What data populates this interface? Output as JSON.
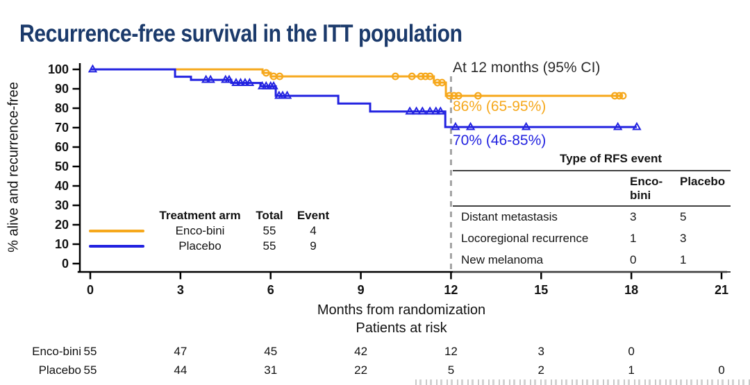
{
  "title": "Recurrence-free survival in the ITT population",
  "colors": {
    "title": "#1b3a6b",
    "axis": "#000000",
    "dashed_line": "#a3a3a3",
    "encobini": "#F6A81C",
    "placebo": "#2222E0"
  },
  "rfs_table": {
    "title": "Type of RFS event",
    "columns": [
      "Enco-bini",
      "Placebo"
    ],
    "rows": [
      {
        "label": "Distant metastasis",
        "encobini": 3,
        "placebo": 5
      },
      {
        "label": "Locoregional recurrence",
        "encobini": 1,
        "placebo": 3
      },
      {
        "label": "New melanoma",
        "encobini": 0,
        "placebo": 1
      }
    ]
  },
  "chart_data": {
    "type": "line",
    "subtype": "kaplan_meier_step",
    "title": "Recurrence-free survival in the ITT population",
    "xlabel": "Months from randomization",
    "ylabel": "% alive and recurrence-free",
    "risk_header": "Patients at risk",
    "xlim": [
      0,
      21
    ],
    "ylim": [
      0,
      100
    ],
    "xticks": [
      0,
      3,
      6,
      9,
      12,
      15,
      18,
      21
    ],
    "yticks": [
      0,
      10,
      20,
      30,
      40,
      50,
      60,
      70,
      80,
      90,
      100
    ],
    "grid": false,
    "reference_line_month": 12,
    "annotations": {
      "heading": "At 12 months (95% CI)",
      "encobini": "86% (65-95%)",
      "placebo": "70% (46-85%)"
    },
    "legend": {
      "header_arm": "Treatment arm",
      "header_total": "Total",
      "header_event": "Event",
      "rows": [
        {
          "arm": "Enco-bini",
          "total": 55,
          "event": 4
        },
        {
          "arm": "Placebo",
          "total": 55,
          "event": 9
        }
      ]
    },
    "series": [
      {
        "name": "Enco-bini",
        "color": "#F6A81C",
        "marker": "circle",
        "start_pct": 100,
        "drops": [
          [
            5.73,
            98.2
          ],
          [
            6.0,
            96.4
          ],
          [
            11.43,
            93.2
          ],
          [
            11.83,
            86.4
          ]
        ],
        "end_month": 17.72,
        "censor_marks": [
          [
            5.85,
            98.2
          ],
          [
            6.1,
            96.4
          ],
          [
            6.3,
            96.4
          ],
          [
            10.15,
            96.4
          ],
          [
            10.7,
            96.4
          ],
          [
            11.0,
            96.4
          ],
          [
            11.15,
            96.4
          ],
          [
            11.3,
            96.4
          ],
          [
            11.55,
            93.2
          ],
          [
            11.7,
            93.2
          ],
          [
            11.95,
            86.4
          ],
          [
            12.1,
            86.4
          ],
          [
            12.25,
            86.4
          ],
          [
            12.9,
            86.4
          ],
          [
            17.45,
            86.4
          ],
          [
            17.6,
            86.4
          ],
          [
            17.72,
            86.4
          ]
        ]
      },
      {
        "name": "Placebo",
        "color": "#2222E0",
        "marker": "triangle",
        "start_pct": 100,
        "drops": [
          [
            2.82,
            96.2
          ],
          [
            3.35,
            94.6
          ],
          [
            4.69,
            93.0
          ],
          [
            5.66,
            91.3
          ],
          [
            6.17,
            86.4
          ],
          [
            8.25,
            82.4
          ],
          [
            9.31,
            78.3
          ],
          [
            11.81,
            70.3
          ]
        ],
        "end_month": 18.18,
        "censor_marks": [
          [
            0.08,
            100
          ],
          [
            3.85,
            94.6
          ],
          [
            4.0,
            94.6
          ],
          [
            4.5,
            94.6
          ],
          [
            4.62,
            94.6
          ],
          [
            4.85,
            93.0
          ],
          [
            5.0,
            93.0
          ],
          [
            5.15,
            93.0
          ],
          [
            5.3,
            93.0
          ],
          [
            5.72,
            91.3
          ],
          [
            5.85,
            91.3
          ],
          [
            6.0,
            91.3
          ],
          [
            6.1,
            91.3
          ],
          [
            6.28,
            86.4
          ],
          [
            6.4,
            86.4
          ],
          [
            6.55,
            86.4
          ],
          [
            10.63,
            78.3
          ],
          [
            10.85,
            78.3
          ],
          [
            11.05,
            78.3
          ],
          [
            11.3,
            78.3
          ],
          [
            11.5,
            78.3
          ],
          [
            11.65,
            78.3
          ],
          [
            12.15,
            70.3
          ],
          [
            12.65,
            70.3
          ],
          [
            14.5,
            70.3
          ],
          [
            17.55,
            70.3
          ],
          [
            18.18,
            70.3
          ]
        ]
      }
    ],
    "at_risk": {
      "months": [
        0,
        3,
        6,
        9,
        12,
        15,
        18,
        21
      ],
      "rows": [
        {
          "label": "Enco-bini",
          "counts": [
            55,
            47,
            45,
            42,
            12,
            3,
            0
          ]
        },
        {
          "label": "Placebo",
          "counts": [
            55,
            44,
            31,
            22,
            5,
            2,
            1,
            0
          ]
        }
      ]
    }
  }
}
